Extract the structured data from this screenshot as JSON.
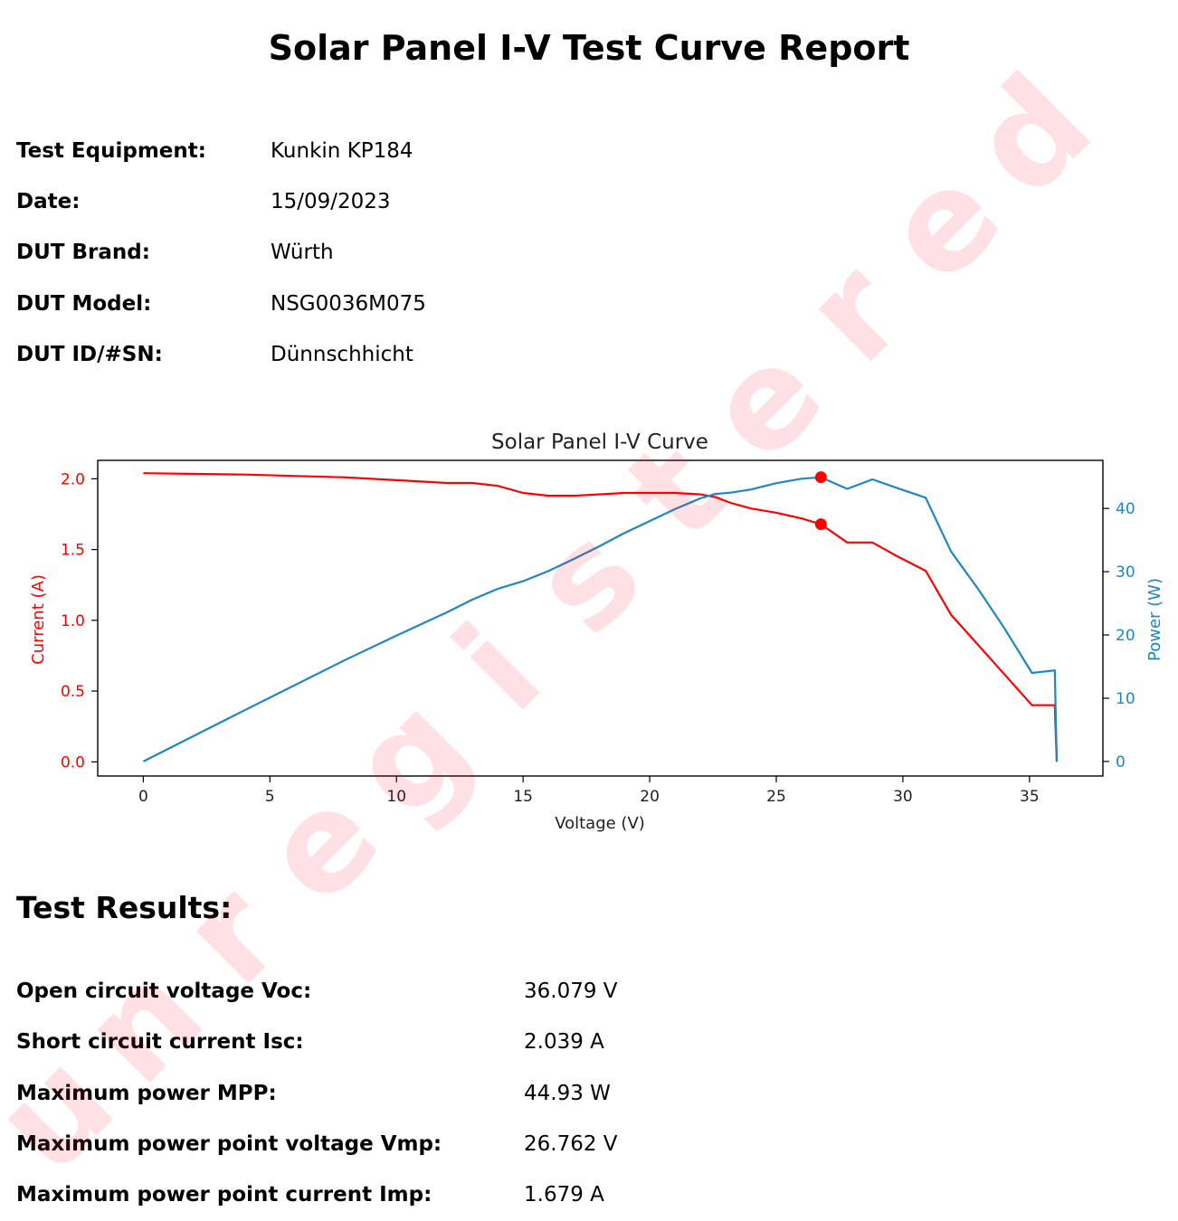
{
  "title": "Solar Panel I-V Test Curve Report",
  "info": [
    {
      "label": "Test Equipment:",
      "value": "Kunkin KP184"
    },
    {
      "label": "Date:",
      "value": "15/09/2023"
    },
    {
      "label": "DUT Brand:",
      "value": "Würth"
    },
    {
      "label": "DUT Model:",
      "value": "NSG0036M075"
    },
    {
      "label": "DUT ID/#SN:",
      "value": "Dünnschhicht"
    }
  ],
  "results_heading": "Test Results:",
  "results": [
    {
      "label": "Open circuit voltage Voc:",
      "value": "36.079 V"
    },
    {
      "label": "Short circuit current Isc:",
      "value": "2.039 A"
    },
    {
      "label": "Maximum power MPP:",
      "value": "44.93 W"
    },
    {
      "label": "Maximum power point voltage Vmp:",
      "value": "26.762 V"
    },
    {
      "label": "Maximum power point current Imp:",
      "value": "1.679 A"
    }
  ],
  "watermark": {
    "text": "unregistered",
    "color": "#ff0028"
  },
  "chart_data": {
    "type": "line",
    "title": "Solar Panel I-V Curve",
    "xlabel": "Voltage (V)",
    "ylabel_left": "Current (A)",
    "ylabel_right": "Power (W)",
    "xlim": [
      -1.8,
      37.9
    ],
    "ylim_left": [
      -0.1,
      2.13
    ],
    "ylim_right": [
      -2.3,
      47.6
    ],
    "xticks": [
      0,
      5,
      10,
      15,
      20,
      25,
      30,
      35
    ],
    "yticks_left": [
      "0.0",
      "0.5",
      "1.0",
      "1.5",
      "2.0"
    ],
    "yticks_right": [
      "0",
      "10",
      "20",
      "30",
      "40"
    ],
    "colors": {
      "current": "#ff0000",
      "power": "#1f86c4",
      "marker": "#ff0000"
    },
    "series": [
      {
        "name": "Current",
        "axis": "left",
        "x": [
          0,
          4,
          8,
          10,
          12,
          13,
          14,
          15,
          16,
          17,
          18,
          19,
          20,
          21,
          22,
          22.6,
          23.2,
          24,
          25,
          26,
          26.762,
          27.8,
          28.8,
          29.8,
          30.9,
          31.9,
          33,
          34,
          35.1,
          36.0,
          36.079
        ],
        "y": [
          2.039,
          2.03,
          2.01,
          1.99,
          1.97,
          1.97,
          1.95,
          1.9,
          1.88,
          1.88,
          1.89,
          1.9,
          1.9,
          1.9,
          1.89,
          1.87,
          1.83,
          1.79,
          1.76,
          1.72,
          1.679,
          1.55,
          1.55,
          1.45,
          1.35,
          1.04,
          0.82,
          0.62,
          0.4,
          0.4,
          0.0
        ]
      },
      {
        "name": "Power",
        "axis": "right",
        "x": [
          0,
          4,
          8,
          10,
          12,
          13,
          14,
          15,
          16,
          17,
          18,
          19,
          20,
          21,
          22,
          22.6,
          23.2,
          24,
          25,
          26,
          26.762,
          27.8,
          28.8,
          29.8,
          30.9,
          31.9,
          33,
          34,
          35.1,
          36.0,
          36.079
        ],
        "y": [
          0,
          8.1,
          16.1,
          19.9,
          23.6,
          25.6,
          27.3,
          28.5,
          30.1,
          32.0,
          34.0,
          36.1,
          38.0,
          39.9,
          41.6,
          42.3,
          42.5,
          43.0,
          44.0,
          44.7,
          44.93,
          43.1,
          44.6,
          43.2,
          41.7,
          33.2,
          27.1,
          21.1,
          14.0,
          14.4,
          0.0
        ]
      }
    ],
    "markers": [
      {
        "x": 26.762,
        "y": 1.679,
        "axis": "left"
      },
      {
        "x": 26.762,
        "y": 44.93,
        "axis": "right"
      }
    ]
  }
}
